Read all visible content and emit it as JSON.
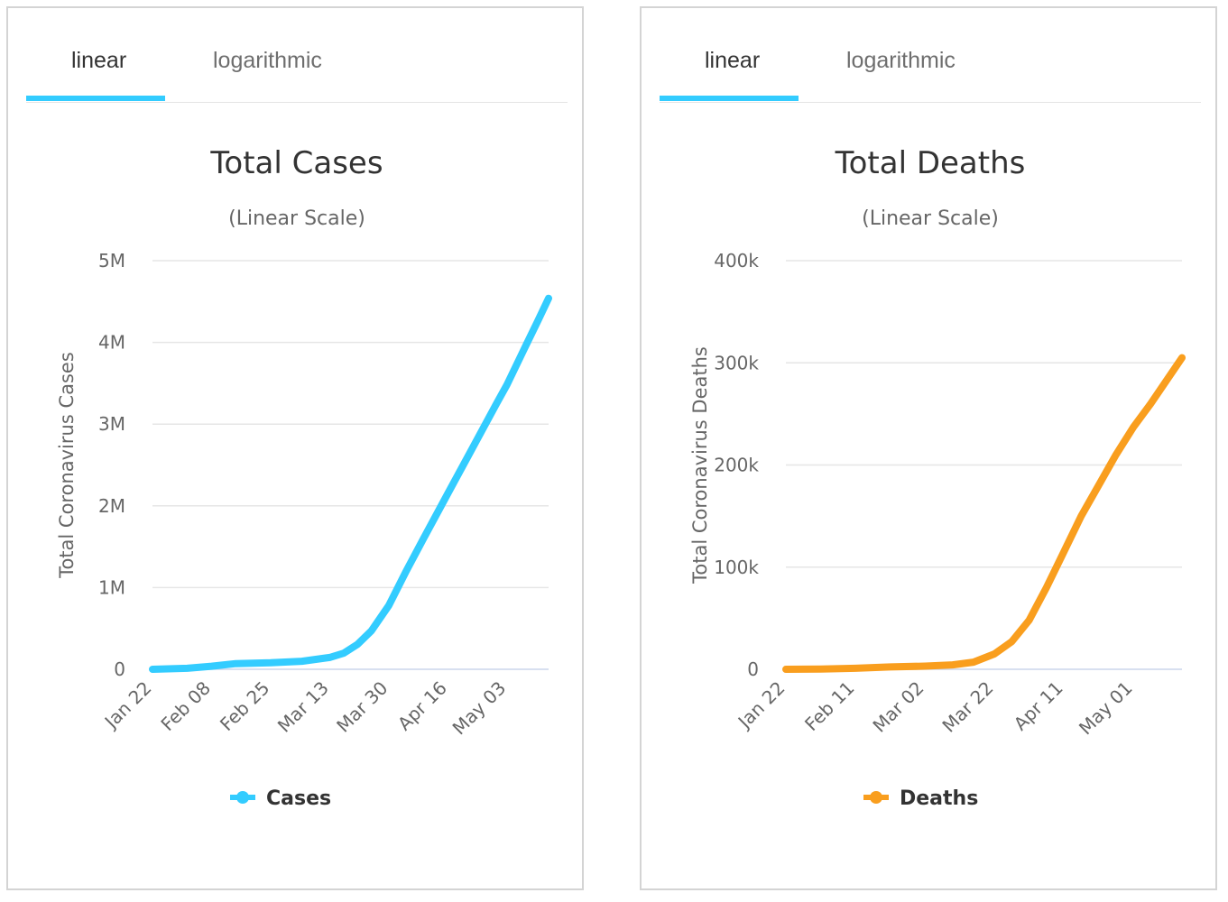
{
  "panels": [
    {
      "tabs": [
        {
          "label": "linear",
          "active": true
        },
        {
          "label": "logarithmic",
          "active": false
        }
      ],
      "accent": "#33ccff"
    },
    {
      "tabs": [
        {
          "label": "linear",
          "active": true
        },
        {
          "label": "logarithmic",
          "active": false
        }
      ],
      "accent": "#33ccff"
    }
  ],
  "chart_data": [
    {
      "type": "line",
      "title": "Total Cases",
      "subtitle": "(Linear Scale)",
      "ylabel": "Total Coronavirus Cases",
      "xlabel": "",
      "ylim": [
        0,
        5000000
      ],
      "grid": true,
      "legend": "bottom-center",
      "color": "#33ccff",
      "y_ticks": [
        {
          "value": 0,
          "label": "0"
        },
        {
          "value": 1000000,
          "label": "1M"
        },
        {
          "value": 2000000,
          "label": "2M"
        },
        {
          "value": 3000000,
          "label": "3M"
        },
        {
          "value": 4000000,
          "label": "4M"
        },
        {
          "value": 5000000,
          "label": "5M"
        }
      ],
      "x_ticks": [
        "Jan 22",
        "Feb 08",
        "Feb 25",
        "Mar 13",
        "Mar 30",
        "Apr 16",
        "May 03"
      ],
      "series": [
        {
          "name": "Cases",
          "x": [
            "Jan 22",
            "Feb 01",
            "Feb 08",
            "Feb 15",
            "Feb 25",
            "Mar 05",
            "Mar 13",
            "Mar 17",
            "Mar 21",
            "Mar 25",
            "Mar 30",
            "Apr 04",
            "Apr 09",
            "Apr 16",
            "Apr 23",
            "Apr 30",
            "May 03",
            "May 08",
            "May 12",
            "May 15"
          ],
          "values": [
            500,
            12000,
            37000,
            70000,
            80000,
            98000,
            145000,
            197000,
            305000,
            470000,
            780000,
            1200000,
            1600000,
            2150000,
            2700000,
            3250000,
            3480000,
            3920000,
            4270000,
            4540000
          ]
        }
      ]
    },
    {
      "type": "line",
      "title": "Total Deaths",
      "subtitle": "(Linear Scale)",
      "ylabel": "Total Coronavirus Deaths",
      "xlabel": "",
      "ylim": [
        0,
        400000
      ],
      "grid": true,
      "legend": "bottom-center",
      "color": "#f99e1e",
      "y_ticks": [
        {
          "value": 0,
          "label": "0"
        },
        {
          "value": 100000,
          "label": "100k"
        },
        {
          "value": 200000,
          "label": "200k"
        },
        {
          "value": 300000,
          "label": "300k"
        },
        {
          "value": 400000,
          "label": "400k"
        }
      ],
      "x_ticks": [
        "Jan 22",
        "Feb 11",
        "Mar 02",
        "Mar 22",
        "Apr 11",
        "May 01"
      ],
      "series": [
        {
          "name": "Deaths",
          "x": [
            "Jan 22",
            "Feb 01",
            "Feb 11",
            "Feb 21",
            "Mar 02",
            "Mar 10",
            "Mar 16",
            "Mar 22",
            "Mar 27",
            "Apr 01",
            "Apr 06",
            "Apr 11",
            "Apr 16",
            "Apr 21",
            "Apr 26",
            "May 01",
            "May 06",
            "May 11",
            "May 15"
          ],
          "values": [
            20,
            300,
            1000,
            2300,
            3100,
            4300,
            7000,
            15000,
            27000,
            48000,
            80000,
            115000,
            150000,
            180000,
            210000,
            237000,
            260000,
            285000,
            305000
          ]
        }
      ]
    }
  ]
}
